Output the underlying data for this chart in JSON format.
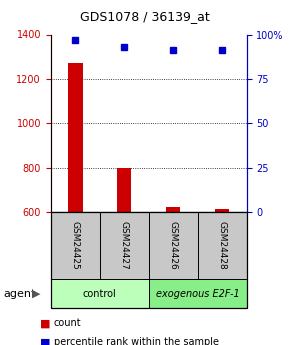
{
  "title": "GDS1078 / 36139_at",
  "samples": [
    "GSM24425",
    "GSM24427",
    "GSM24426",
    "GSM24428"
  ],
  "groups": [
    "control",
    "control",
    "exogenous E2F-1",
    "exogenous E2F-1"
  ],
  "count_values": [
    1270,
    800,
    622,
    616
  ],
  "percentile_values": [
    97,
    93,
    91,
    91
  ],
  "ylim_left": [
    600,
    1400
  ],
  "ylim_right": [
    0,
    100
  ],
  "yticks_left": [
    600,
    800,
    1000,
    1200,
    1400
  ],
  "yticks_right": [
    0,
    25,
    50,
    75,
    100
  ],
  "bar_color": "#cc0000",
  "dot_color": "#0000cc",
  "bar_width": 0.3,
  "legend_items": [
    {
      "label": "count",
      "color": "#cc0000"
    },
    {
      "label": "percentile rank within the sample",
      "color": "#0000cc"
    }
  ],
  "right_axis_color": "#0000cc",
  "left_axis_color": "#cc0000",
  "figsize": [
    2.9,
    3.45
  ],
  "dpi": 100
}
